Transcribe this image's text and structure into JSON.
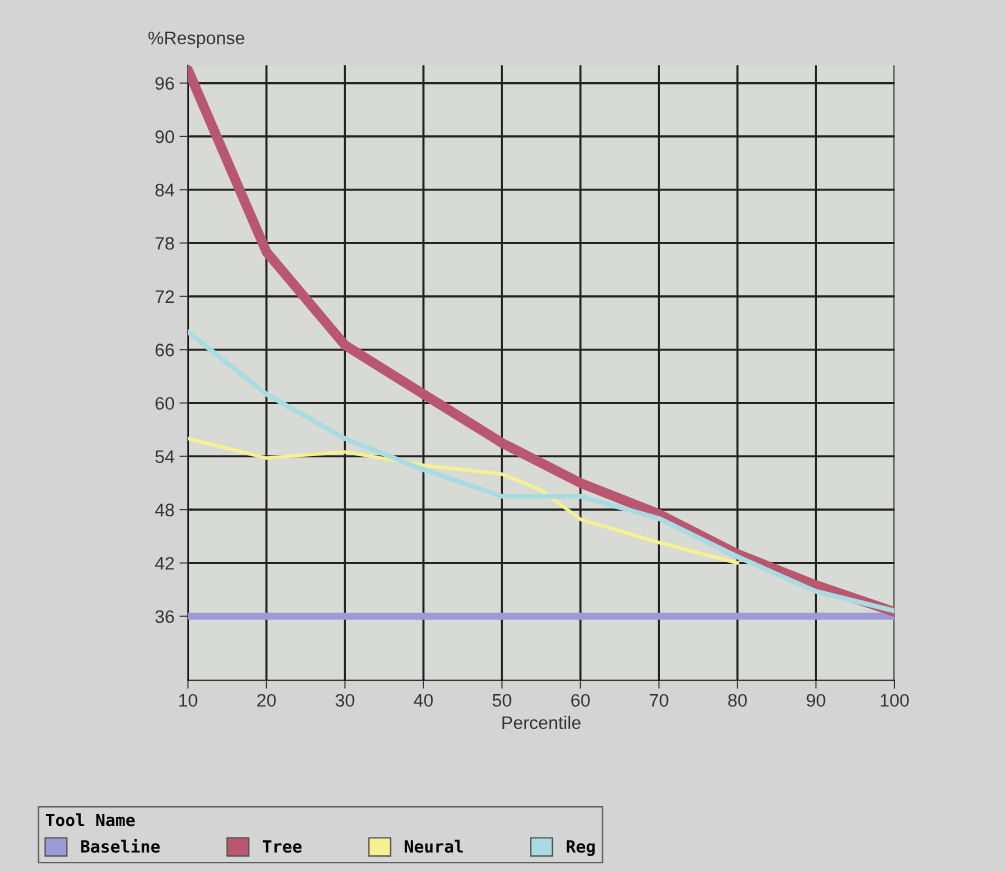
{
  "chart_data": {
    "type": "line",
    "xlabel": "Percentile",
    "ylabel": "%Response",
    "legend_title": "Tool Name",
    "x": [
      10,
      20,
      30,
      40,
      50,
      60,
      70,
      80,
      90,
      100
    ],
    "series": [
      {
        "name": "Baseline",
        "color": "#9d9ad8",
        "values": [
          36,
          36,
          36,
          36,
          36,
          36,
          36,
          36,
          36,
          36
        ]
      },
      {
        "name": "Tree",
        "color": "#b8576f",
        "values": [
          97.5,
          77,
          66.5,
          61,
          55.5,
          51,
          47.5,
          43,
          39.5,
          36.5
        ]
      },
      {
        "name": "Neural",
        "color": "#f5f090",
        "x": [
          10,
          20,
          30,
          40,
          50,
          55,
          60,
          70,
          80
        ],
        "values": [
          56,
          53.8,
          54.5,
          53,
          52,
          50.2,
          46.9,
          44.3,
          42
        ]
      },
      {
        "name": "Reg",
        "color": "#a8dce0",
        "values": [
          68,
          61,
          56,
          52.5,
          49.5,
          49.5,
          47,
          42.7,
          38.8,
          36.6
        ]
      }
    ],
    "xlim": [
      10,
      100
    ],
    "ylim": [
      28.8,
      98
    ],
    "xticks": [
      10,
      20,
      30,
      40,
      50,
      60,
      70,
      80,
      90,
      100
    ],
    "yticks": [
      36,
      42,
      48,
      54,
      60,
      66,
      72,
      78,
      84,
      90,
      96
    ],
    "grid": true,
    "legend": "bottom",
    "marker": "none",
    "line_style": "solid"
  }
}
